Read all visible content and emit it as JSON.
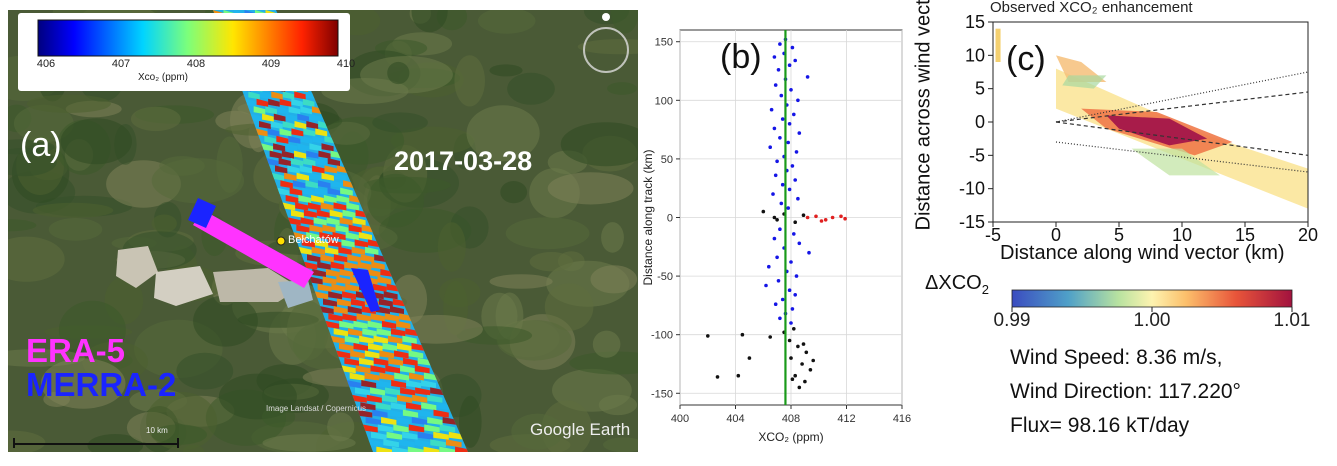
{
  "panel_a": {
    "label": "(a)",
    "date": "2017-03-28",
    "city": "Bełchatów",
    "legend_era5": "ERA-5",
    "legend_merra2": "MERRA-2",
    "colorbar_ticks": [
      "406",
      "407",
      "408",
      "409",
      "410"
    ],
    "colorbar_title": "Xco₂ (ppm)",
    "watermark": "Google Earth",
    "credit": "Image Landsat / Copernicus",
    "scale_text": "10 km",
    "colors": {
      "era5": "#ff33ff",
      "merra2": "#1a24ff",
      "city_dot": "#ffe000"
    }
  },
  "panel_b": {
    "label": "(b)"
  },
  "panel_c": {
    "label": "(c)",
    "title": "Observed XCO₂ enhancement",
    "xlabel": "Distance along wind vector (km)",
    "ylabel": "Distance across wind vector (km)",
    "legend_title": "ΔXCO",
    "legend_title_sub": "2",
    "legend_ticks": [
      "0.99",
      "1.00",
      "1.01"
    ],
    "wind_speed": "Wind Speed: 8.36 m/s,",
    "wind_direction": "Wind Direction: 117.220°",
    "flux": "Flux= 98.16 kT/day"
  },
  "chart_data": [
    {
      "type": "scatter",
      "panel": "b",
      "xlabel": "XCO₂ (ppm)",
      "ylabel": "Distance along track (km)",
      "xlim": [
        400,
        416
      ],
      "ylim": [
        -160,
        160
      ],
      "x_ticks": [
        400,
        404,
        408,
        412,
        416
      ],
      "y_ticks": [
        -150,
        -100,
        -50,
        0,
        50,
        100,
        150
      ],
      "grid": true,
      "vertical_line": {
        "x": 407.6,
        "color": "#1a9a1a"
      },
      "series": [
        {
          "color": "#1515e6",
          "points": [
            [
              407.6,
              152
            ],
            [
              407.2,
              148
            ],
            [
              408.1,
              145
            ],
            [
              407.5,
              140
            ],
            [
              406.8,
              137
            ],
            [
              408.3,
              134
            ],
            [
              407.9,
              130
            ],
            [
              407.1,
              126
            ],
            [
              409.2,
              120
            ],
            [
              407.6,
              118
            ],
            [
              406.9,
              113
            ],
            [
              408.0,
              109
            ],
            [
              407.3,
              104
            ],
            [
              408.5,
              100
            ],
            [
              407.7,
              96
            ],
            [
              406.6,
              92
            ],
            [
              408.2,
              88
            ],
            [
              407.4,
              84
            ],
            [
              407.9,
              80
            ],
            [
              406.8,
              76
            ],
            [
              408.6,
              72
            ],
            [
              407.2,
              68
            ],
            [
              407.8,
              64
            ],
            [
              406.5,
              60
            ],
            [
              408.4,
              56
            ],
            [
              407.5,
              52
            ],
            [
              407.0,
              48
            ],
            [
              408.1,
              44
            ],
            [
              407.7,
              40
            ],
            [
              406.9,
              36
            ],
            [
              408.3,
              32
            ],
            [
              407.4,
              28
            ],
            [
              407.9,
              24
            ],
            [
              406.7,
              20
            ],
            [
              408.5,
              16
            ],
            [
              407.3,
              12
            ],
            [
              407.8,
              8
            ],
            [
              407.2,
              -10
            ],
            [
              408.2,
              -14
            ],
            [
              406.8,
              -18
            ],
            [
              408.6,
              -22
            ],
            [
              407.5,
              -26
            ],
            [
              409.3,
              -30
            ],
            [
              407.0,
              -34
            ],
            [
              408.0,
              -38
            ],
            [
              406.4,
              -42
            ],
            [
              407.7,
              -46
            ],
            [
              408.4,
              -50
            ],
            [
              407.1,
              -54
            ],
            [
              406.2,
              -58
            ],
            [
              407.9,
              -62
            ],
            [
              408.3,
              -66
            ],
            [
              407.4,
              -70
            ],
            [
              406.9,
              -74
            ],
            [
              408.1,
              -78
            ],
            [
              407.6,
              -82
            ],
            [
              407.2,
              -86
            ],
            [
              408.0,
              -90
            ]
          ]
        },
        {
          "color": "#111111",
          "points": [
            [
              406.0,
              5
            ],
            [
              407.5,
              3
            ],
            [
              408.9,
              2
            ],
            [
              407.0,
              -2
            ],
            [
              408.3,
              -4
            ],
            [
              406.8,
              0
            ],
            [
              404.5,
              -100
            ],
            [
              402.0,
              -101
            ],
            [
              406.5,
              -102
            ],
            [
              408.2,
              -95
            ],
            [
              407.9,
              -105
            ],
            [
              408.5,
              -110
            ],
            [
              409.1,
              -115
            ],
            [
              408.0,
              -120
            ],
            [
              408.8,
              -125
            ],
            [
              409.4,
              -130
            ],
            [
              408.3,
              -135
            ],
            [
              409.0,
              -140
            ],
            [
              408.6,
              -145
            ],
            [
              405.0,
              -120
            ],
            [
              404.2,
              -135
            ],
            [
              402.7,
              -136
            ],
            [
              407.5,
              -98
            ],
            [
              408.9,
              -108
            ],
            [
              409.6,
              -122
            ],
            [
              408.1,
              -138
            ]
          ]
        },
        {
          "color": "#e02020",
          "points": [
            [
              409.2,
              0
            ],
            [
              409.8,
              1
            ],
            [
              410.5,
              -2
            ],
            [
              411.0,
              0
            ],
            [
              411.6,
              1
            ],
            [
              410.2,
              -3
            ],
            [
              411.9,
              -1
            ]
          ]
        }
      ]
    },
    {
      "type": "heatmap",
      "panel": "c",
      "title": "Observed XCO₂ enhancement",
      "xlabel": "Distance along wind vector (km)",
      "ylabel": "Distance across wind vector (km)",
      "xlim": [
        -5,
        20
      ],
      "ylim": [
        -15,
        15
      ],
      "x_ticks": [
        -5,
        0,
        5,
        10,
        15,
        20
      ],
      "y_ticks": [
        15,
        10,
        5,
        0,
        -5,
        -10,
        -15
      ],
      "color_scale": {
        "min": 0.99,
        "max": 1.01,
        "label": "ΔXCO₂"
      }
    }
  ]
}
